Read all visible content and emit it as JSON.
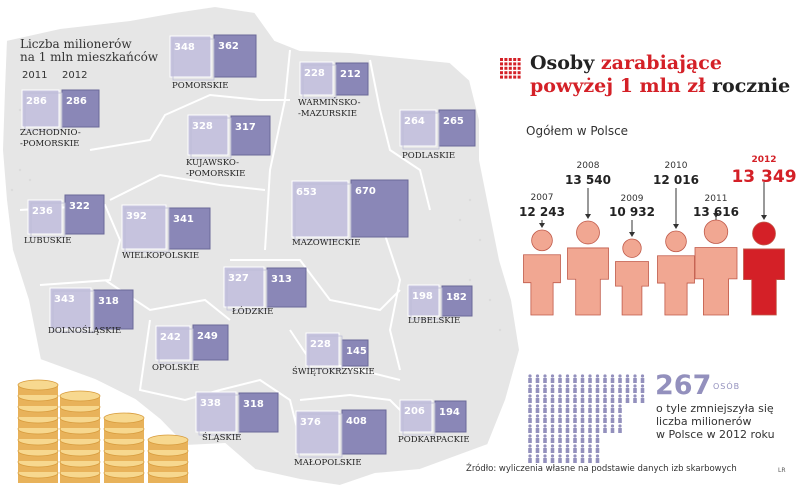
{
  "map_panel": {
    "heading_line1": "Liczba milionerów",
    "heading_line2": "na 1 mln mieszkańców",
    "year_a": "2011",
    "year_b": "2012"
  },
  "header": {
    "title_part1": "Osoby ",
    "title_part2": "zarabiające",
    "title_part3": "powyżej 1 mln zł",
    "title_part4": " rocznie",
    "subtitle": "Ogółem w Polsce"
  },
  "summary": {
    "big_number": "267",
    "unit": "OSÓB",
    "note_line1": "o tyle zmniejszyła się",
    "note_line2": "liczba milionerów",
    "note_line3": "w Polsce w 2012 roku"
  },
  "footer": {
    "source": "Źródło: wyliczenia własne na podstawie danych izb skarbowych",
    "credit": "LR"
  },
  "colors": {
    "accent_red": "#d42027",
    "person_salmon": "#f1a792",
    "box_2011": "#c6c3de",
    "box_2012": "#8a87b7",
    "map_fill": "#e6e6e6"
  },
  "chart_data": [
    {
      "type": "bar",
      "title": "Liczba milionerów na 1 mln mieszkańców",
      "categories": [
        "ZACHODNIO-POMORSKIE",
        "POMORSKIE",
        "WARMIŃSKO-MAZURSKIE",
        "PODLASKIE",
        "KUJAWSKO-POMORSKIE",
        "LUBUSKIE",
        "WIELKOPOLSKIE",
        "MAZOWIECKIE",
        "ŁÓDZKIE",
        "LUBELSKIE",
        "DOLNOŚLĄSKIE",
        "OPOLSKIE",
        "ŚWIĘTOKRZYSKIE",
        "ŚLĄSKIE",
        "MAŁOPOLSKIE",
        "PODKARPACKIE"
      ],
      "category_labels": [
        [
          "ZACHODNIO-",
          "-POMORSKIE"
        ],
        [
          "POMORSKIE"
        ],
        [
          "WARMIŃSKO-",
          "-MAZURSKIE"
        ],
        [
          "PODLASKIE"
        ],
        [
          "KUJAWSKO-",
          "-POMORSKIE"
        ],
        [
          "LUBUSKIE"
        ],
        [
          "WIELKOPOLSKIE"
        ],
        [
          "MAZOWIECKIE"
        ],
        [
          "ŁÓDZKIE"
        ],
        [
          "LUBELSKIE"
        ],
        [
          "DOLNOŚLĄSKIE"
        ],
        [
          "OPOLSKIE"
        ],
        [
          "ŚWIĘTOKRZYSKIE"
        ],
        [
          "ŚLĄSKIE"
        ],
        [
          "MAŁOPOLSKIE"
        ],
        [
          "PODKARPACKIE"
        ]
      ],
      "series": [
        {
          "name": "2011",
          "values": [
            286,
            348,
            228,
            264,
            328,
            236,
            392,
            653,
            327,
            198,
            343,
            242,
            228,
            338,
            376,
            206
          ]
        },
        {
          "name": "2012",
          "values": [
            286,
            362,
            212,
            265,
            317,
            322,
            341,
            670,
            313,
            182,
            318,
            249,
            145,
            318,
            408,
            194
          ]
        }
      ]
    },
    {
      "type": "bar",
      "title": "Ogółem w Polsce",
      "categories": [
        "2007",
        "2008",
        "2009",
        "2010",
        "2011",
        "2012"
      ],
      "values": [
        12243,
        13540,
        10932,
        12016,
        13616,
        13349
      ],
      "value_labels": [
        "12 243",
        "13 540",
        "10 932",
        "12 016",
        "13 616",
        "13 349"
      ]
    }
  ]
}
